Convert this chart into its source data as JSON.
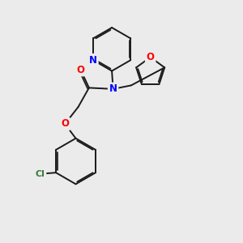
{
  "bg_color": "#ebebeb",
  "bond_color": "#1a1a1a",
  "N_color": "#0000ff",
  "O_color": "#ff0000",
  "Cl_color": "#3a7a3a",
  "lw": 1.4,
  "dbo": 0.055,
  "figsize": [
    3.0,
    3.0
  ],
  "dpi": 100,
  "xlim": [
    0,
    10
  ],
  "ylim": [
    0,
    10
  ]
}
